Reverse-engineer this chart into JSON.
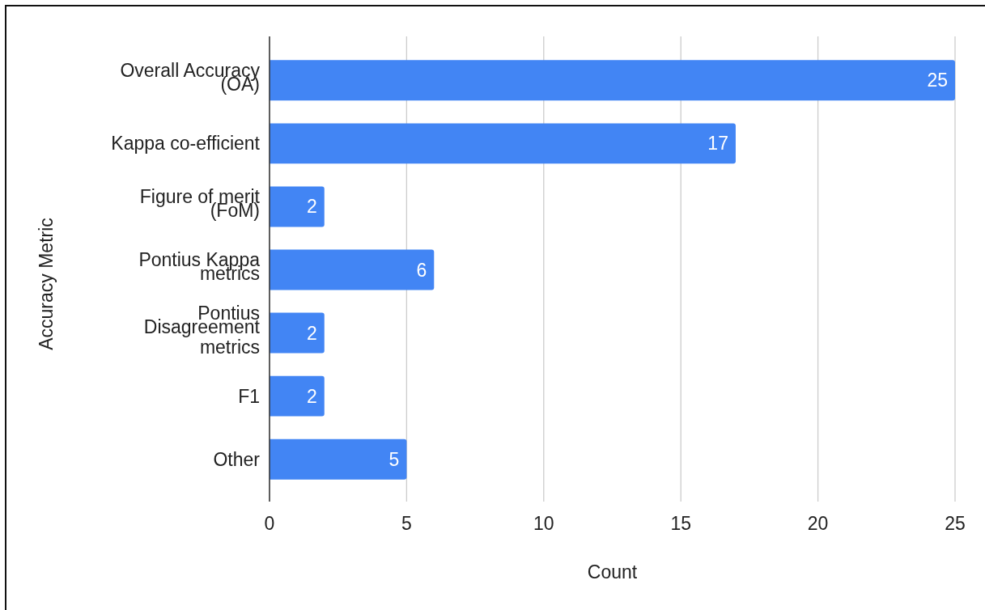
{
  "chart_data": {
    "type": "bar",
    "orientation": "horizontal",
    "categories": [
      "Overall Accuracy (OA)",
      "Kappa co-efficient",
      "Figure of merit (FoM)",
      "Pontius Kappa metrics",
      "Pontius Disagreement metrics",
      "F1",
      "Other"
    ],
    "values": [
      25,
      17,
      2,
      6,
      2,
      2,
      5
    ],
    "color": "#4285f4",
    "xlim": [
      0,
      25
    ],
    "xticks": [
      0,
      5,
      10,
      15,
      20,
      25
    ],
    "xlabel": "Count",
    "ylabel": "Accuracy Metric",
    "grid": "x",
    "data_labels": true
  }
}
